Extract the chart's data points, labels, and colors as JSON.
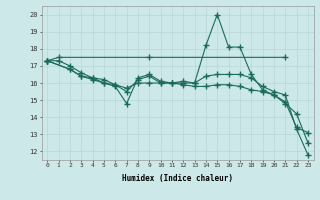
{
  "xlabel": "Humidex (Indice chaleur)",
  "ylabel": "",
  "xlim": [
    -0.5,
    23.5
  ],
  "ylim": [
    11.5,
    20.5
  ],
  "xticks": [
    0,
    1,
    2,
    3,
    4,
    5,
    6,
    7,
    8,
    9,
    10,
    11,
    12,
    13,
    14,
    15,
    16,
    17,
    18,
    19,
    20,
    21,
    22,
    23
  ],
  "yticks": [
    12,
    13,
    14,
    15,
    16,
    17,
    18,
    19,
    20
  ],
  "bg_color": "#cde8e8",
  "grid_color": "#b8d8d8",
  "line_color": "#1a6b5a",
  "line1_x": [
    0,
    1,
    9,
    21
  ],
  "line1_y": [
    17.3,
    17.5,
    17.5,
    17.5
  ],
  "line2_x": [
    0,
    2,
    3,
    4,
    5,
    6,
    7,
    8,
    9,
    10,
    11,
    12,
    13,
    14,
    15,
    16,
    17,
    18,
    19,
    20,
    21,
    22,
    23
  ],
  "line2_y": [
    17.3,
    16.8,
    16.4,
    16.3,
    16.0,
    15.8,
    14.8,
    16.3,
    16.5,
    16.1,
    16.0,
    16.1,
    16.0,
    18.2,
    20.0,
    18.1,
    18.1,
    16.5,
    15.6,
    15.3,
    14.9,
    13.4,
    13.1
  ],
  "line3_x": [
    0,
    2,
    3,
    4,
    5,
    6,
    7,
    8,
    9,
    10,
    11,
    12,
    13,
    14,
    15,
    16,
    17,
    18,
    19,
    20,
    21,
    22,
    23
  ],
  "line3_y": [
    17.3,
    16.8,
    16.4,
    16.2,
    16.0,
    15.9,
    15.5,
    16.2,
    16.4,
    16.0,
    16.0,
    16.0,
    16.0,
    16.4,
    16.5,
    16.5,
    16.5,
    16.3,
    15.8,
    15.5,
    15.3,
    13.3,
    11.8
  ],
  "line4_x": [
    0,
    1,
    2,
    3,
    4,
    5,
    6,
    7,
    8,
    9,
    10,
    11,
    12,
    13,
    14,
    15,
    16,
    17,
    18,
    19,
    20,
    21,
    22,
    23
  ],
  "line4_y": [
    17.3,
    17.3,
    17.0,
    16.6,
    16.3,
    16.2,
    15.9,
    15.7,
    16.0,
    16.0,
    16.0,
    16.0,
    15.9,
    15.8,
    15.8,
    15.9,
    15.9,
    15.8,
    15.6,
    15.5,
    15.3,
    14.8,
    14.2,
    12.5
  ]
}
